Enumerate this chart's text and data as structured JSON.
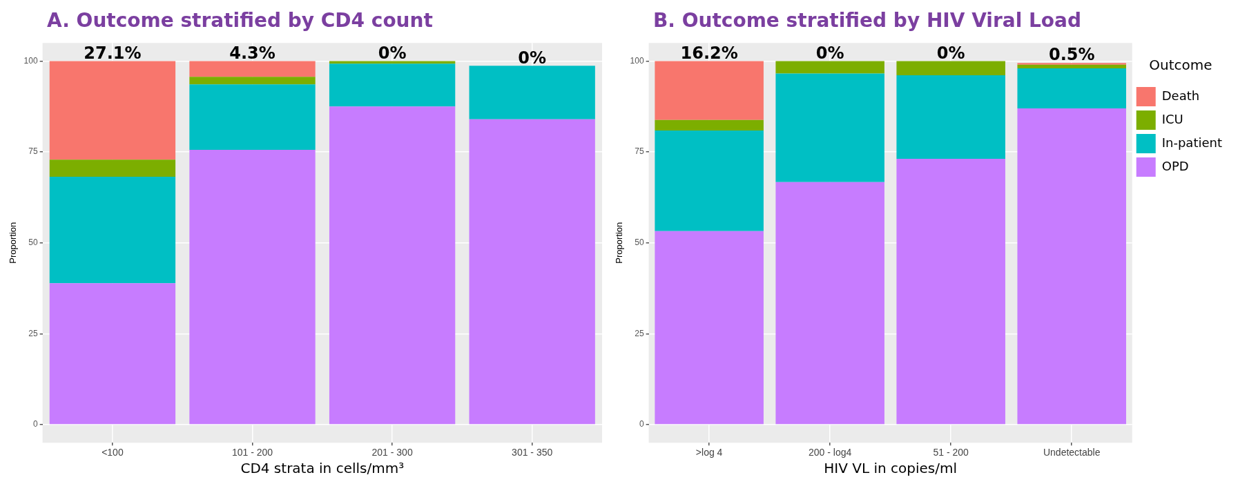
{
  "chart_data": [
    {
      "type": "bar",
      "title": "A. Outcome stratified by CD4 count",
      "xlabel": "CD4 strata in cells/mm³",
      "ylabel": "Proportion",
      "categories": [
        "<100",
        "101 - 200",
        "201 - 300",
        "301 - 350"
      ],
      "stacked": true,
      "ylim": [
        -5,
        105
      ],
      "yticks": [
        0,
        25,
        50,
        75,
        100
      ],
      "grid": true,
      "legend": false,
      "series": [
        {
          "color": "#c77cff",
          "values": [
            38.9,
            75.6,
            87.5,
            84.0
          ]
        },
        {
          "color": "#00bfc4",
          "values": [
            29.3,
            18.0,
            11.8,
            14.7
          ]
        },
        {
          "color": "#7cae00",
          "values": [
            4.7,
            2.1,
            0.7,
            0
          ]
        },
        {
          "color": "#f8766d",
          "values": [
            27.1,
            4.3,
            0,
            0
          ],
          "value_labels": [
            "27.1%",
            "4.3%",
            "0%",
            "0%"
          ]
        }
      ]
    },
    {
      "type": "bar",
      "title": "B. Outcome stratified by HIV Viral Load",
      "xlabel": "HIV VL in copies/ml",
      "ylabel": "Proportion",
      "categories": [
        ">log 4",
        "200 - log4",
        "51 - 200",
        "Undetectable"
      ],
      "stacked": true,
      "ylim": [
        -5,
        105
      ],
      "yticks": [
        0,
        25,
        50,
        75,
        100
      ],
      "grid": true,
      "legend": "right",
      "legend_title": "Outcome",
      "series": [
        {
          "name": "OPD",
          "color": "#c77cff",
          "values": [
            53.2,
            66.7,
            73.1,
            87.0
          ]
        },
        {
          "name": "In-patient",
          "color": "#00bfc4",
          "values": [
            27.7,
            29.9,
            23.0,
            11.0
          ]
        },
        {
          "name": "ICU",
          "color": "#7cae00",
          "values": [
            2.9,
            3.4,
            3.9,
            1.0
          ]
        },
        {
          "name": "Death",
          "color": "#f8766d",
          "values": [
            16.2,
            0,
            0,
            0.5
          ],
          "value_labels": [
            "16.2%",
            "0%",
            "0%",
            "0.5%"
          ]
        }
      ]
    }
  ]
}
